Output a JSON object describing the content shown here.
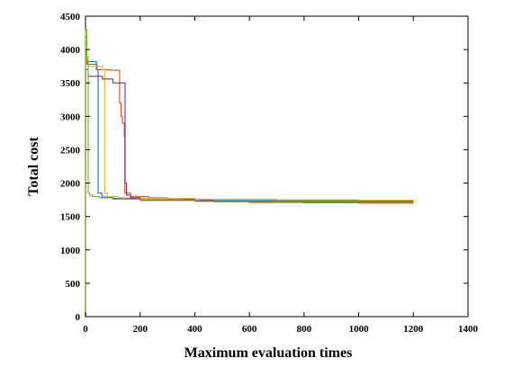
{
  "chart_data": {
    "type": "line",
    "title": "",
    "xlabel": "Maximum evaluation times",
    "ylabel": "Total cost",
    "xlim": [
      0,
      1400
    ],
    "ylim": [
      0,
      4500
    ],
    "xticks": [
      0,
      200,
      400,
      600,
      800,
      1000,
      1200,
      1400
    ],
    "yticks": [
      0,
      500,
      1000,
      1500,
      2000,
      2500,
      3000,
      3500,
      4000,
      4500
    ],
    "grid": false,
    "legend": "none",
    "series": [
      {
        "color": "#0072BD",
        "step": true,
        "points": [
          [
            0,
            0
          ],
          [
            0,
            4200
          ],
          [
            5,
            3900
          ],
          [
            10,
            3820
          ],
          [
            38,
            3820
          ],
          [
            40,
            3700
          ],
          [
            44,
            3700
          ],
          [
            46,
            1850
          ],
          [
            60,
            1790
          ],
          [
            100,
            1770
          ],
          [
            200,
            1750
          ],
          [
            400,
            1740
          ],
          [
            700,
            1735
          ],
          [
            1000,
            1730
          ],
          [
            1200,
            1730
          ]
        ]
      },
      {
        "color": "#D95319",
        "step": true,
        "points": [
          [
            0,
            0
          ],
          [
            0,
            4000
          ],
          [
            3,
            3900
          ],
          [
            5,
            3780
          ],
          [
            40,
            3780
          ],
          [
            42,
            3700
          ],
          [
            88,
            3700
          ],
          [
            90,
            3690
          ],
          [
            120,
            3690
          ],
          [
            125,
            3200
          ],
          [
            130,
            3000
          ],
          [
            135,
            2900
          ],
          [
            142,
            2700
          ],
          [
            144,
            1850
          ],
          [
            160,
            1850
          ],
          [
            165,
            1800
          ],
          [
            200,
            1800
          ],
          [
            230,
            1780
          ],
          [
            300,
            1770
          ],
          [
            360,
            1760
          ],
          [
            420,
            1750
          ],
          [
            470,
            1720
          ],
          [
            600,
            1710
          ],
          [
            800,
            1705
          ],
          [
            1000,
            1700
          ],
          [
            1200,
            1700
          ]
        ]
      },
      {
        "color": "#EDB120",
        "step": true,
        "points": [
          [
            0,
            0
          ],
          [
            0,
            3900
          ],
          [
            10,
            3750
          ],
          [
            60,
            3750
          ],
          [
            62,
            3700
          ],
          [
            68,
            3700
          ],
          [
            70,
            1850
          ],
          [
            80,
            1800
          ],
          [
            120,
            1780
          ],
          [
            200,
            1770
          ],
          [
            400,
            1760
          ],
          [
            700,
            1750
          ],
          [
            1000,
            1745
          ],
          [
            1200,
            1745
          ]
        ]
      },
      {
        "color": "#7E2F8E",
        "step": true,
        "points": [
          [
            0,
            0
          ],
          [
            0,
            3700
          ],
          [
            10,
            3600
          ],
          [
            60,
            3600
          ],
          [
            62,
            3560
          ],
          [
            95,
            3560
          ],
          [
            100,
            3500
          ],
          [
            140,
            3500
          ],
          [
            145,
            2000
          ],
          [
            150,
            1820
          ],
          [
            165,
            1780
          ],
          [
            200,
            1750
          ],
          [
            400,
            1730
          ],
          [
            700,
            1720
          ],
          [
            1000,
            1715
          ],
          [
            1200,
            1715
          ]
        ]
      },
      {
        "color": "#77AC30",
        "step": true,
        "points": [
          [
            0,
            0
          ],
          [
            0,
            4300
          ],
          [
            5,
            3850
          ],
          [
            8,
            3800
          ],
          [
            10,
            1850
          ],
          [
            15,
            1820
          ],
          [
            25,
            1800
          ],
          [
            50,
            1780
          ],
          [
            100,
            1760
          ],
          [
            200,
            1740
          ],
          [
            400,
            1725
          ],
          [
            700,
            1720
          ],
          [
            1000,
            1720
          ],
          [
            1200,
            1720
          ]
        ]
      }
    ]
  }
}
